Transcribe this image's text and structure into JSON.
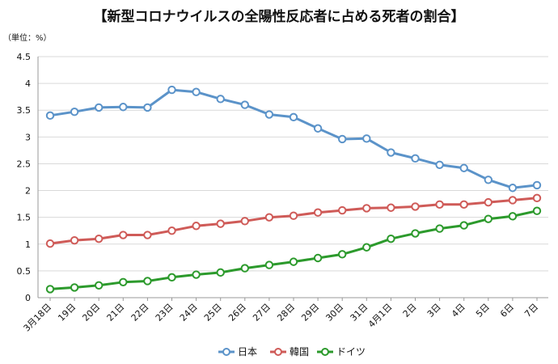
{
  "chart_data": {
    "type": "line",
    "title": "【新型コロナウイルスの全陽性反応者に占める死者の割合】",
    "unit_label": "（単位：%）",
    "xlabel": "",
    "ylabel": "",
    "ylim": [
      0,
      4.5
    ],
    "yticks": [
      "0",
      "0.5",
      "1",
      "1.5",
      "2",
      "2.5",
      "3",
      "3.5",
      "4",
      "4.5"
    ],
    "grid": true,
    "legend_position": "bottom",
    "categories": [
      "3月18日",
      "19日",
      "20日",
      "21日",
      "22日",
      "23日",
      "24日",
      "25日",
      "26日",
      "27日",
      "28日",
      "29日",
      "30日",
      "31日",
      "4月1日",
      "2日",
      "3日",
      "4日",
      "5日",
      "6日",
      "7日"
    ],
    "series": [
      {
        "name": "日本",
        "color": "#5b93c9",
        "values": [
          3.4,
          3.47,
          3.55,
          3.56,
          3.55,
          3.88,
          3.84,
          3.71,
          3.6,
          3.42,
          3.37,
          3.16,
          2.96,
          2.97,
          2.71,
          2.6,
          2.48,
          2.42,
          2.2,
          2.05,
          2.1
        ]
      },
      {
        "name": "韓国",
        "color": "#cf5b58",
        "values": [
          1.01,
          1.07,
          1.1,
          1.17,
          1.17,
          1.25,
          1.34,
          1.38,
          1.43,
          1.5,
          1.53,
          1.59,
          1.63,
          1.67,
          1.68,
          1.7,
          1.74,
          1.74,
          1.78,
          1.82,
          1.86
        ]
      },
      {
        "name": "ドイツ",
        "color": "#2c9a2c",
        "values": [
          0.16,
          0.19,
          0.23,
          0.29,
          0.31,
          0.38,
          0.43,
          0.47,
          0.55,
          0.61,
          0.67,
          0.74,
          0.81,
          0.94,
          1.1,
          1.2,
          1.29,
          1.35,
          1.47,
          1.52,
          1.62
        ]
      }
    ]
  }
}
